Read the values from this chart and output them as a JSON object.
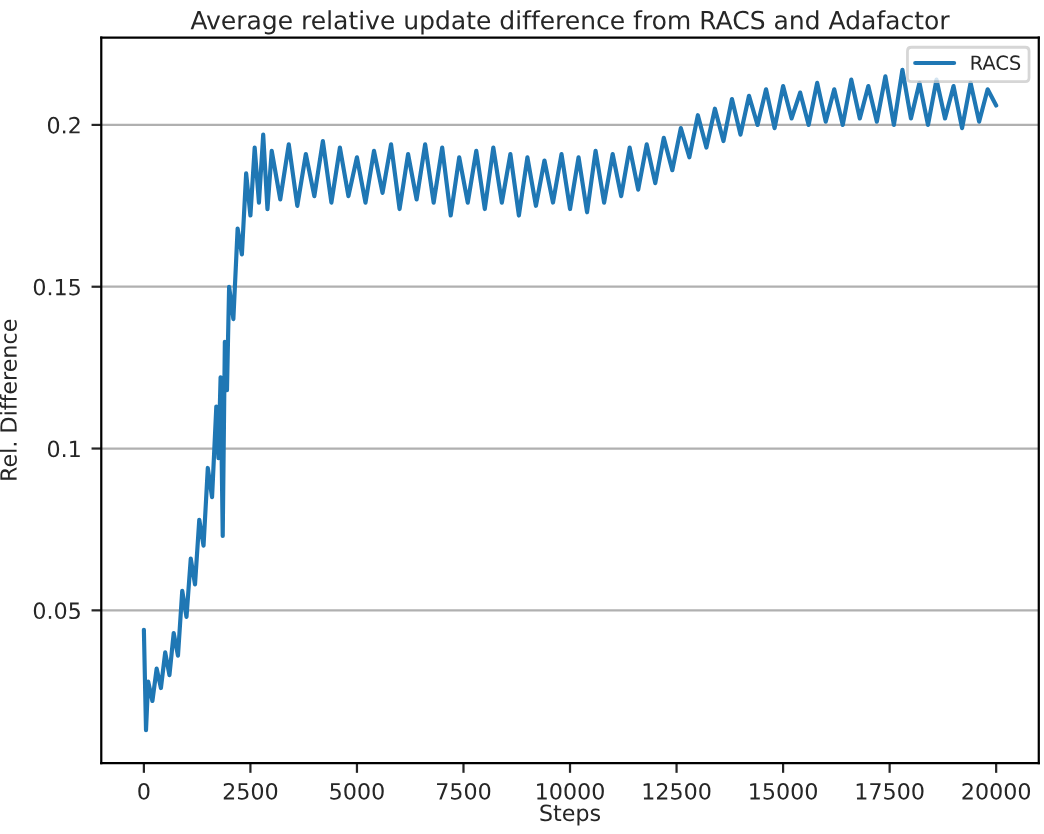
{
  "chart_data": {
    "type": "line",
    "title": "Average relative update difference from RACS and Adafactor",
    "xlabel": "Steps",
    "ylabel": "Rel. Difference",
    "xlim": [
      -1000,
      21000
    ],
    "ylim": [
      0.0028,
      0.227
    ],
    "xticks": [
      0,
      2500,
      5000,
      7500,
      10000,
      12500,
      15000,
      17500,
      20000
    ],
    "yticks": [
      0.05,
      0.1,
      0.15,
      0.2
    ],
    "grid": "y",
    "legend": "top right",
    "series": [
      {
        "name": "RACS",
        "color": "#1f77b4",
        "x": [
          0,
          50,
          100,
          200,
          300,
          400,
          500,
          600,
          700,
          800,
          900,
          1000,
          1100,
          1200,
          1300,
          1400,
          1500,
          1600,
          1700,
          1750,
          1800,
          1850,
          1900,
          1950,
          2000,
          2100,
          2200,
          2300,
          2400,
          2500,
          2600,
          2700,
          2800,
          2900,
          3000,
          3200,
          3400,
          3600,
          3800,
          4000,
          4200,
          4400,
          4600,
          4800,
          5000,
          5200,
          5400,
          5600,
          5800,
          6000,
          6200,
          6400,
          6600,
          6800,
          7000,
          7200,
          7400,
          7600,
          7800,
          8000,
          8200,
          8400,
          8600,
          8800,
          9000,
          9200,
          9400,
          9600,
          9800,
          10000,
          10200,
          10400,
          10600,
          10800,
          11000,
          11200,
          11400,
          11600,
          11800,
          12000,
          12200,
          12400,
          12600,
          12800,
          13000,
          13200,
          13400,
          13600,
          13800,
          14000,
          14200,
          14400,
          14600,
          14800,
          15000,
          15200,
          15400,
          15600,
          15800,
          16000,
          16200,
          16400,
          16600,
          16800,
          17000,
          17200,
          17400,
          17600,
          17800,
          18000,
          18200,
          18400,
          18600,
          18800,
          19000,
          19200,
          19400,
          19600,
          19800,
          20000
        ],
        "values": [
          0.044,
          0.013,
          0.028,
          0.022,
          0.032,
          0.026,
          0.037,
          0.03,
          0.043,
          0.036,
          0.056,
          0.048,
          0.066,
          0.058,
          0.078,
          0.07,
          0.094,
          0.085,
          0.113,
          0.097,
          0.122,
          0.073,
          0.133,
          0.118,
          0.15,
          0.14,
          0.168,
          0.16,
          0.185,
          0.172,
          0.193,
          0.176,
          0.197,
          0.174,
          0.192,
          0.177,
          0.194,
          0.175,
          0.191,
          0.178,
          0.195,
          0.176,
          0.193,
          0.178,
          0.19,
          0.176,
          0.192,
          0.179,
          0.194,
          0.174,
          0.191,
          0.177,
          0.194,
          0.176,
          0.193,
          0.172,
          0.19,
          0.176,
          0.192,
          0.174,
          0.193,
          0.176,
          0.191,
          0.172,
          0.19,
          0.175,
          0.189,
          0.176,
          0.191,
          0.174,
          0.19,
          0.173,
          0.192,
          0.176,
          0.191,
          0.178,
          0.193,
          0.18,
          0.194,
          0.182,
          0.196,
          0.186,
          0.199,
          0.19,
          0.203,
          0.193,
          0.205,
          0.195,
          0.208,
          0.197,
          0.209,
          0.2,
          0.211,
          0.199,
          0.212,
          0.202,
          0.21,
          0.2,
          0.213,
          0.201,
          0.211,
          0.2,
          0.214,
          0.202,
          0.212,
          0.201,
          0.215,
          0.2,
          0.217,
          0.202,
          0.213,
          0.2,
          0.214,
          0.202,
          0.212,
          0.199,
          0.213,
          0.201,
          0.211,
          0.206
        ]
      }
    ]
  }
}
